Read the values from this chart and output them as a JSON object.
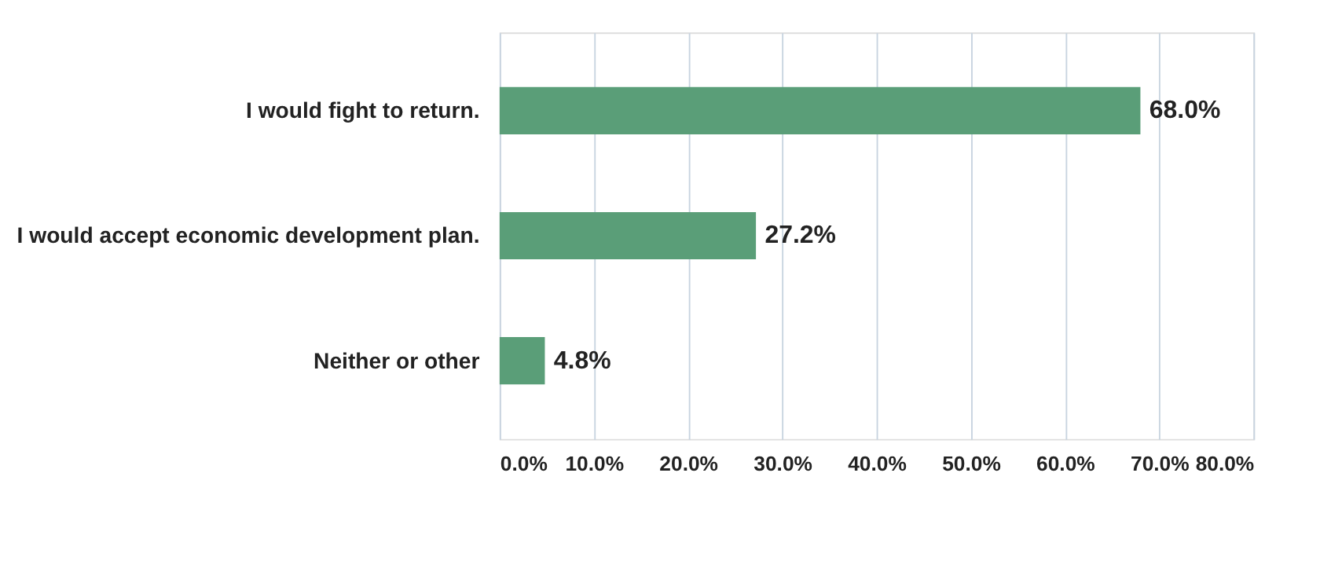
{
  "chart_data": {
    "type": "bar",
    "orientation": "horizontal",
    "categories": [
      "I would fight to return.",
      "I would accept economic development plan.",
      "Neither or other"
    ],
    "values": [
      68.0,
      27.2,
      4.8
    ],
    "value_labels": [
      "68.0%",
      "27.2%",
      "4.8%"
    ],
    "color": "#5a9e78",
    "xlim": [
      0,
      80
    ],
    "xticks": [
      {
        "value": 0,
        "label": "0.0%"
      },
      {
        "value": 10,
        "label": "10.0%"
      },
      {
        "value": 20,
        "label": "20.0%"
      },
      {
        "value": 30,
        "label": "30.0%"
      },
      {
        "value": 40,
        "label": "40.0%"
      },
      {
        "value": 50,
        "label": "50.0%"
      },
      {
        "value": 60,
        "label": "60.0%"
      },
      {
        "value": 70,
        "label": "70.0%"
      },
      {
        "value": 80,
        "label": "80.0%"
      }
    ],
    "grid": "x"
  }
}
